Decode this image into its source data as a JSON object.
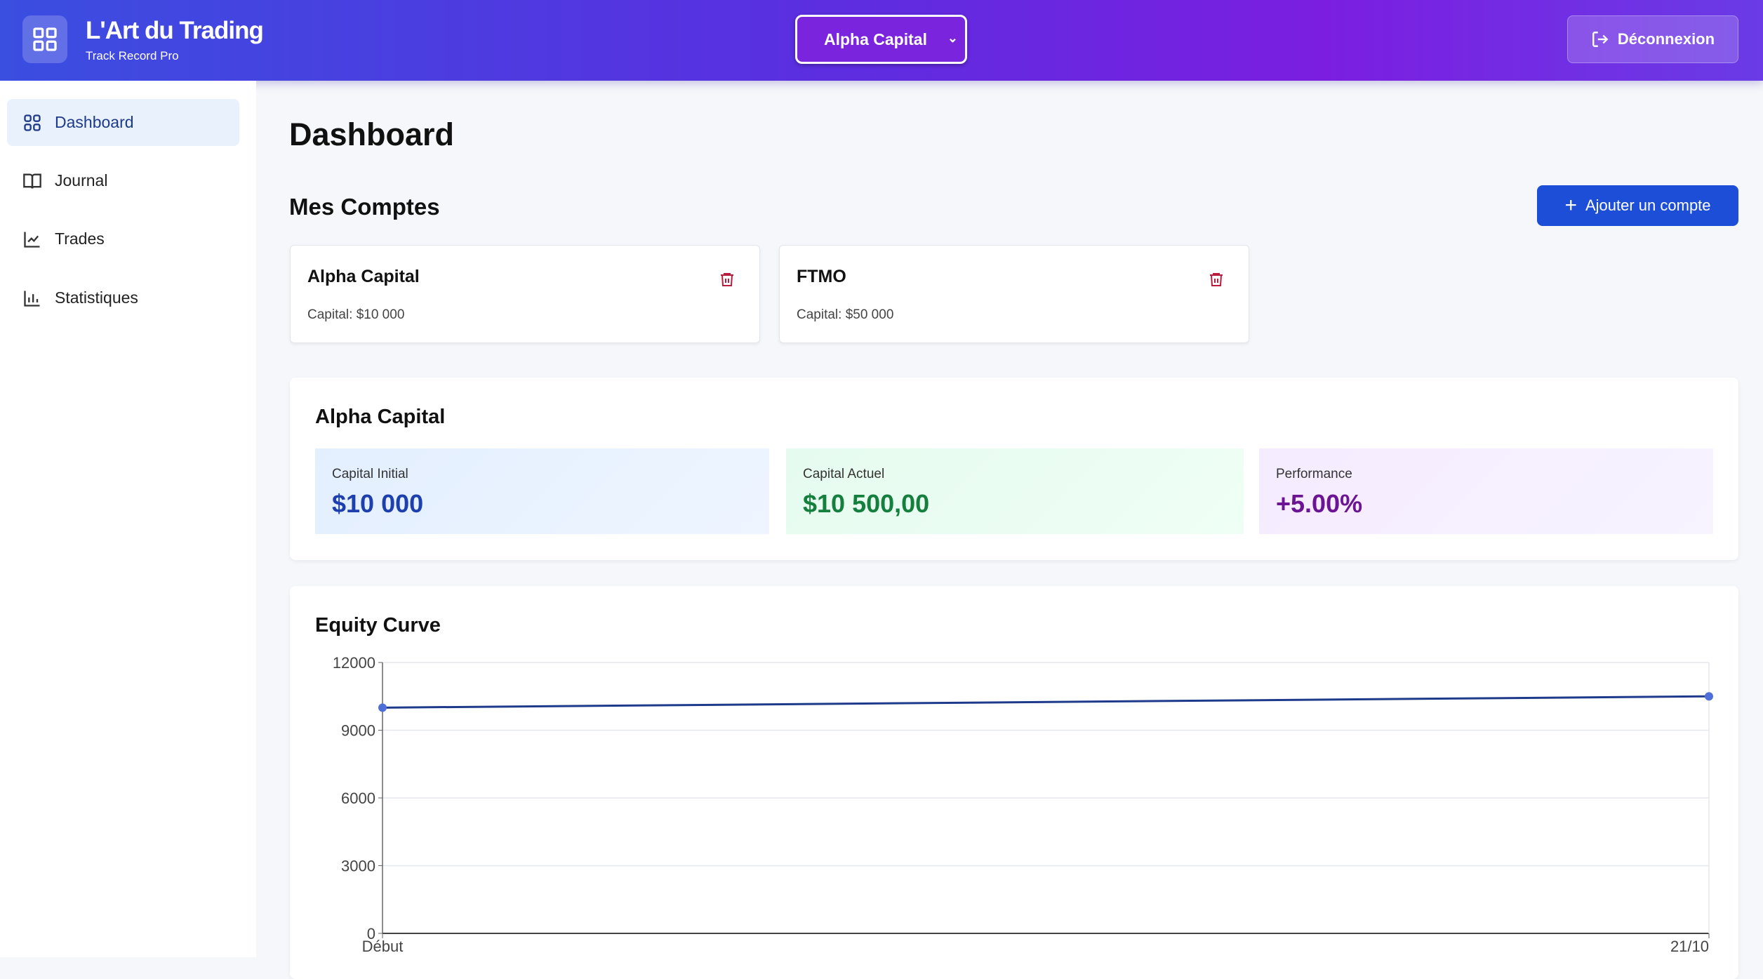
{
  "header": {
    "title": "L'Art du Trading",
    "subtitle": "Track Record Pro",
    "account_selected": "Alpha Capital",
    "logout_label": "Déconnexion"
  },
  "sidebar": {
    "items": [
      {
        "label": "Dashboard",
        "icon": "dashboard-icon",
        "active": true
      },
      {
        "label": "Journal",
        "icon": "book-icon"
      },
      {
        "label": "Trades",
        "icon": "chart-line-icon"
      },
      {
        "label": "Statistiques",
        "icon": "bar-chart-icon"
      }
    ]
  },
  "main": {
    "title": "Dashboard",
    "accounts_title": "Mes Comptes",
    "add_account_label": "Ajouter un compte",
    "accounts": [
      {
        "name": "Alpha Capital",
        "capital": "Capital: $10 000"
      },
      {
        "name": "FTMO",
        "capital": "Capital: $50 000"
      }
    ],
    "summary": {
      "title": "Alpha Capital",
      "stats": [
        {
          "label": "Capital Initial",
          "value": "$10 000",
          "color": "#1e40af"
        },
        {
          "label": "Capital Actuel",
          "value": "$10 500,00",
          "color": "#15803d"
        },
        {
          "label": "Performance",
          "value": "+5.00%",
          "color": "#6b1595"
        }
      ]
    }
  },
  "chart_data": {
    "type": "line",
    "title": "Equity Curve",
    "categories": [
      "Début",
      "21/10"
    ],
    "series": [
      {
        "name": "Equity",
        "values": [
          10000,
          10500
        ],
        "color": "#1e3a8a"
      }
    ],
    "ylim": [
      0,
      12000
    ],
    "yticks": [
      "0",
      "3000",
      "6000",
      "9000",
      "12000"
    ],
    "grid": true
  }
}
